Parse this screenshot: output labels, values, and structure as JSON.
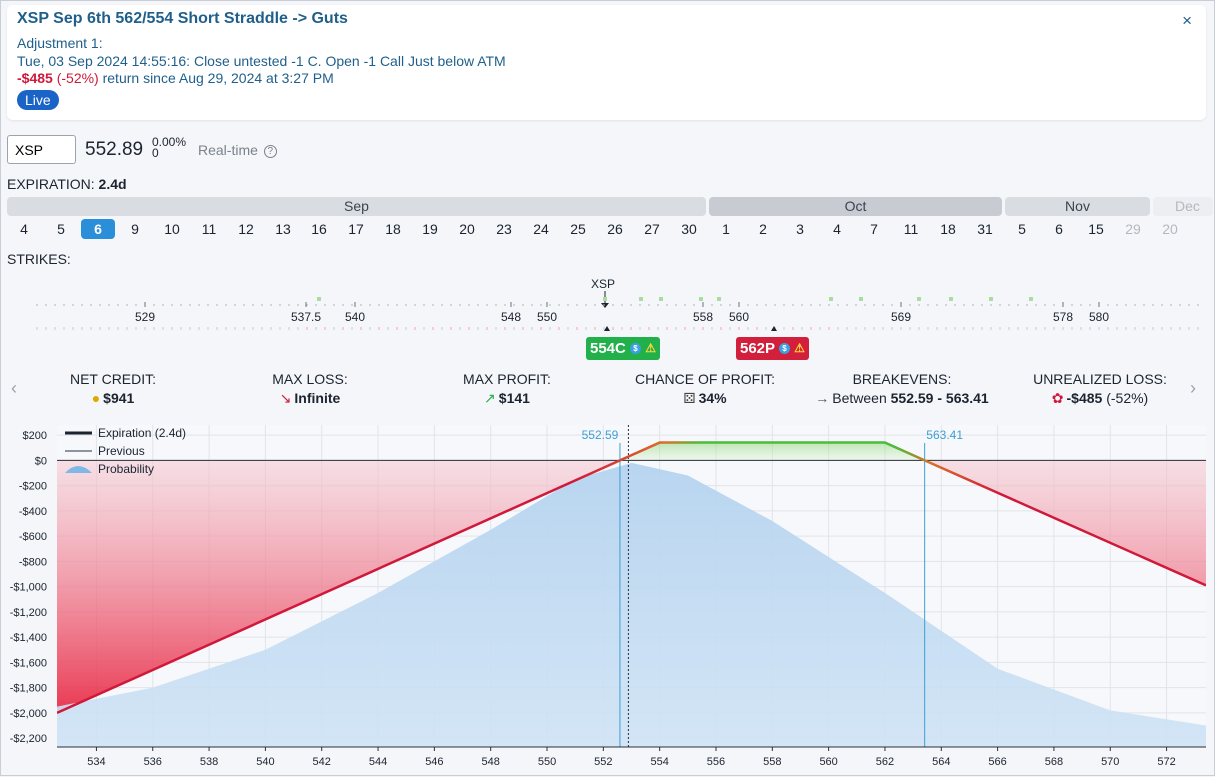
{
  "header": {
    "title": "XSP Sep 6th 562/554 Short Straddle -> Guts",
    "close_icon": "×",
    "adjustment_title": "Adjustment 1:",
    "adjustment_text": "Tue, 03 Sep 2024 14:55:16: Close untested -1 C. Open -1 Call Just below ATM",
    "return_amount": "-$485",
    "return_pct": "(-52%)",
    "return_text": "return since Aug 29, 2024 at 3:27 PM",
    "status_badge": "Live"
  },
  "quote": {
    "symbol": "XSP",
    "price": "552.89",
    "change_pct": "0.00%",
    "change_abs": "0",
    "feed": "Real-time",
    "help_icon": "?"
  },
  "expiration": {
    "label": "EXPIRATION:",
    "value": "2.4d",
    "months": [
      "Sep",
      "Oct",
      "Nov",
      "Dec"
    ],
    "dates": [
      "4",
      "5",
      "6",
      "9",
      "10",
      "11",
      "12",
      "13",
      "16",
      "17",
      "18",
      "19",
      "20",
      "23",
      "24",
      "25",
      "26",
      "27",
      "30",
      "1",
      "2",
      "3",
      "4",
      "7",
      "11",
      "18",
      "31",
      "5",
      "6",
      "15",
      "29",
      "20"
    ],
    "selected": "6"
  },
  "strikes": {
    "label": "STRIKES:",
    "underlying": "XSP",
    "labels": [
      "529",
      "537.5",
      "540",
      "548",
      "550",
      "558",
      "560",
      "569",
      "578",
      "580"
    ],
    "call_leg": "554C",
    "put_leg": "562P"
  },
  "stats": [
    {
      "label": "NET CREDIT:",
      "icon": "coins-icon",
      "value": "$941",
      "color": "#1b2430"
    },
    {
      "label": "MAX LOSS:",
      "icon": "arrow-down-right-icon",
      "value": "Infinite",
      "color": "#1b2430"
    },
    {
      "label": "MAX PROFIT:",
      "icon": "arrow-up-right-icon",
      "value": "$141",
      "color": "#1b2430"
    },
    {
      "label": "CHANCE OF PROFIT:",
      "icon": "dice-icon",
      "value": "34%",
      "color": "#1b2430"
    },
    {
      "label": "BREAKEVENS:",
      "icon": "arrow-right-icon",
      "value_prefix": "Between",
      "value": "552.59 - 563.41",
      "color": "#1b2430"
    },
    {
      "label": "UNREALIZED LOSS:",
      "icon": "money-bag-icon",
      "value": "-$485",
      "value_suffix": "(-52%)",
      "color": "#1b2430"
    }
  ],
  "chart_data": {
    "type": "line",
    "series": [
      {
        "name": "Expiration (2.4d)",
        "x": [
          532.6,
          552.59,
          554,
          562,
          563.41,
          573.4
        ],
        "y": [
          -2000,
          0,
          141,
          141,
          0,
          -990
        ]
      },
      {
        "name": "Previous",
        "x": [],
        "y": []
      },
      {
        "name": "Probability",
        "x": [
          532.6,
          536,
          540,
          544,
          548,
          551,
          553,
          555,
          558,
          562,
          566,
          570,
          573.4
        ],
        "y": [
          -1950,
          -1800,
          -1500,
          -1050,
          -550,
          -150,
          -20,
          -120,
          -480,
          -1050,
          -1650,
          -1980,
          -2100
        ]
      }
    ],
    "breakevens": [
      552.59,
      563.41
    ],
    "current_price": 552.89,
    "xlim": [
      532.6,
      573.4
    ],
    "ylim": [
      -2270,
      280
    ],
    "xticks": [
      534,
      536,
      538,
      540,
      542,
      544,
      546,
      548,
      550,
      552,
      554,
      556,
      558,
      560,
      562,
      564,
      566,
      568,
      570,
      572
    ],
    "yticks": [
      200,
      0,
      -200,
      -400,
      -600,
      -800,
      -1000,
      -1200,
      -1400,
      -1600,
      -1800,
      -2000,
      -2200
    ],
    "ytick_labels": [
      "$200",
      "$0",
      "-$200",
      "-$400",
      "-$600",
      "-$800",
      "-$1,000",
      "-$1,200",
      "-$1,400",
      "-$1,600",
      "-$1,800",
      "-$2,000",
      "-$2,200"
    ],
    "xtick_labels": [
      "534",
      "536",
      "538",
      "540",
      "542",
      "544",
      "546",
      "548",
      "550",
      "552",
      "554",
      "556",
      "558",
      "560",
      "562",
      "564",
      "566",
      "568",
      "570",
      "572"
    ],
    "breakeven_labels": [
      "552.59",
      "563.41"
    ],
    "grid": true,
    "legend": "top-left",
    "colors": {
      "profit": "#4cbb3a",
      "loss": "#d0193a",
      "breakeven": "#3b9fd6",
      "probability": "#b9d6f0"
    }
  }
}
